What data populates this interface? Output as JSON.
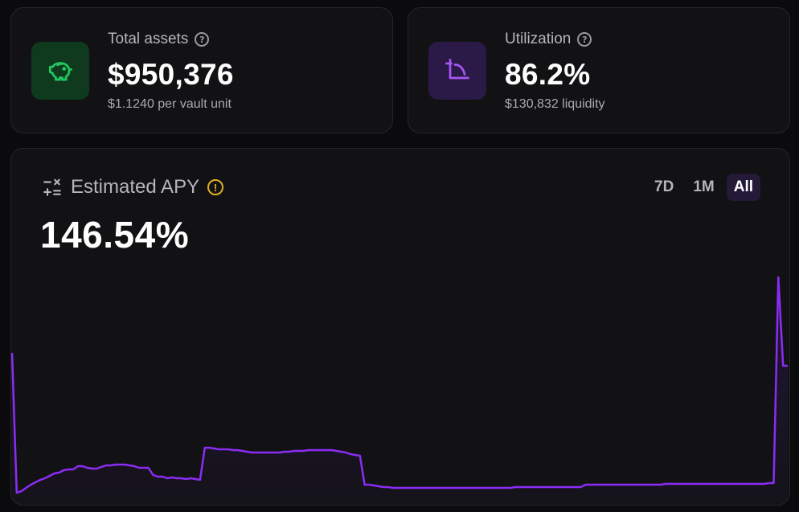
{
  "total_assets": {
    "label": "Total assets",
    "value": "$950,376",
    "sub": "$1.1240 per vault unit",
    "icon": "piggy-bank-icon",
    "accent": "#22c55e"
  },
  "utilization": {
    "label": "Utilization",
    "value": "86.2%",
    "sub": "$130,832 liquidity",
    "icon": "crop-icon",
    "accent": "#a855f7"
  },
  "apy": {
    "label": "Estimated APY",
    "value": "146.54%",
    "icon": "calculator-icon",
    "warning_icon": "warning-icon",
    "ranges": [
      {
        "label": "7D",
        "active": false
      },
      {
        "label": "1M",
        "active": false
      },
      {
        "label": "All",
        "active": true
      }
    ]
  },
  "chart_data": {
    "type": "area",
    "title": "",
    "xlabel": "",
    "ylabel": "",
    "grid": false,
    "line_color": "#8b2cf5",
    "series": [
      {
        "values": [
          176,
          2,
          4,
          8,
          12,
          15,
          18,
          20,
          23,
          26,
          27,
          30,
          31,
          31,
          35,
          35,
          33,
          32,
          32,
          34,
          36,
          36,
          37,
          37,
          37,
          36,
          35,
          33,
          33,
          33,
          24,
          22,
          22,
          20,
          21,
          20,
          20,
          19,
          20,
          19,
          18,
          58,
          58,
          57,
          56,
          56,
          56,
          55,
          55,
          54,
          53,
          52,
          52,
          52,
          52,
          52,
          52,
          52,
          53,
          53,
          54,
          54,
          54,
          55,
          55,
          55,
          55,
          55,
          55,
          54,
          53,
          52,
          50,
          49,
          48,
          12,
          12,
          11,
          10,
          9,
          9,
          8,
          8,
          8,
          8,
          8,
          8,
          8,
          8,
          8,
          8,
          8,
          8,
          8,
          8,
          8,
          8,
          8,
          8,
          8,
          8,
          8,
          8,
          8,
          8,
          8,
          8,
          9,
          9,
          9,
          9,
          9,
          9,
          9,
          9,
          9,
          9,
          9,
          9,
          9,
          9,
          9,
          12,
          12,
          12,
          12,
          12,
          12,
          12,
          12,
          12,
          12,
          12,
          12,
          12,
          12,
          12,
          12,
          12,
          13,
          13,
          13,
          13,
          13,
          13,
          13,
          13,
          13,
          13,
          13,
          13,
          13,
          13,
          13,
          13,
          13,
          13,
          13,
          13,
          13,
          13,
          14,
          14,
          270,
          160,
          160
        ]
      }
    ]
  }
}
